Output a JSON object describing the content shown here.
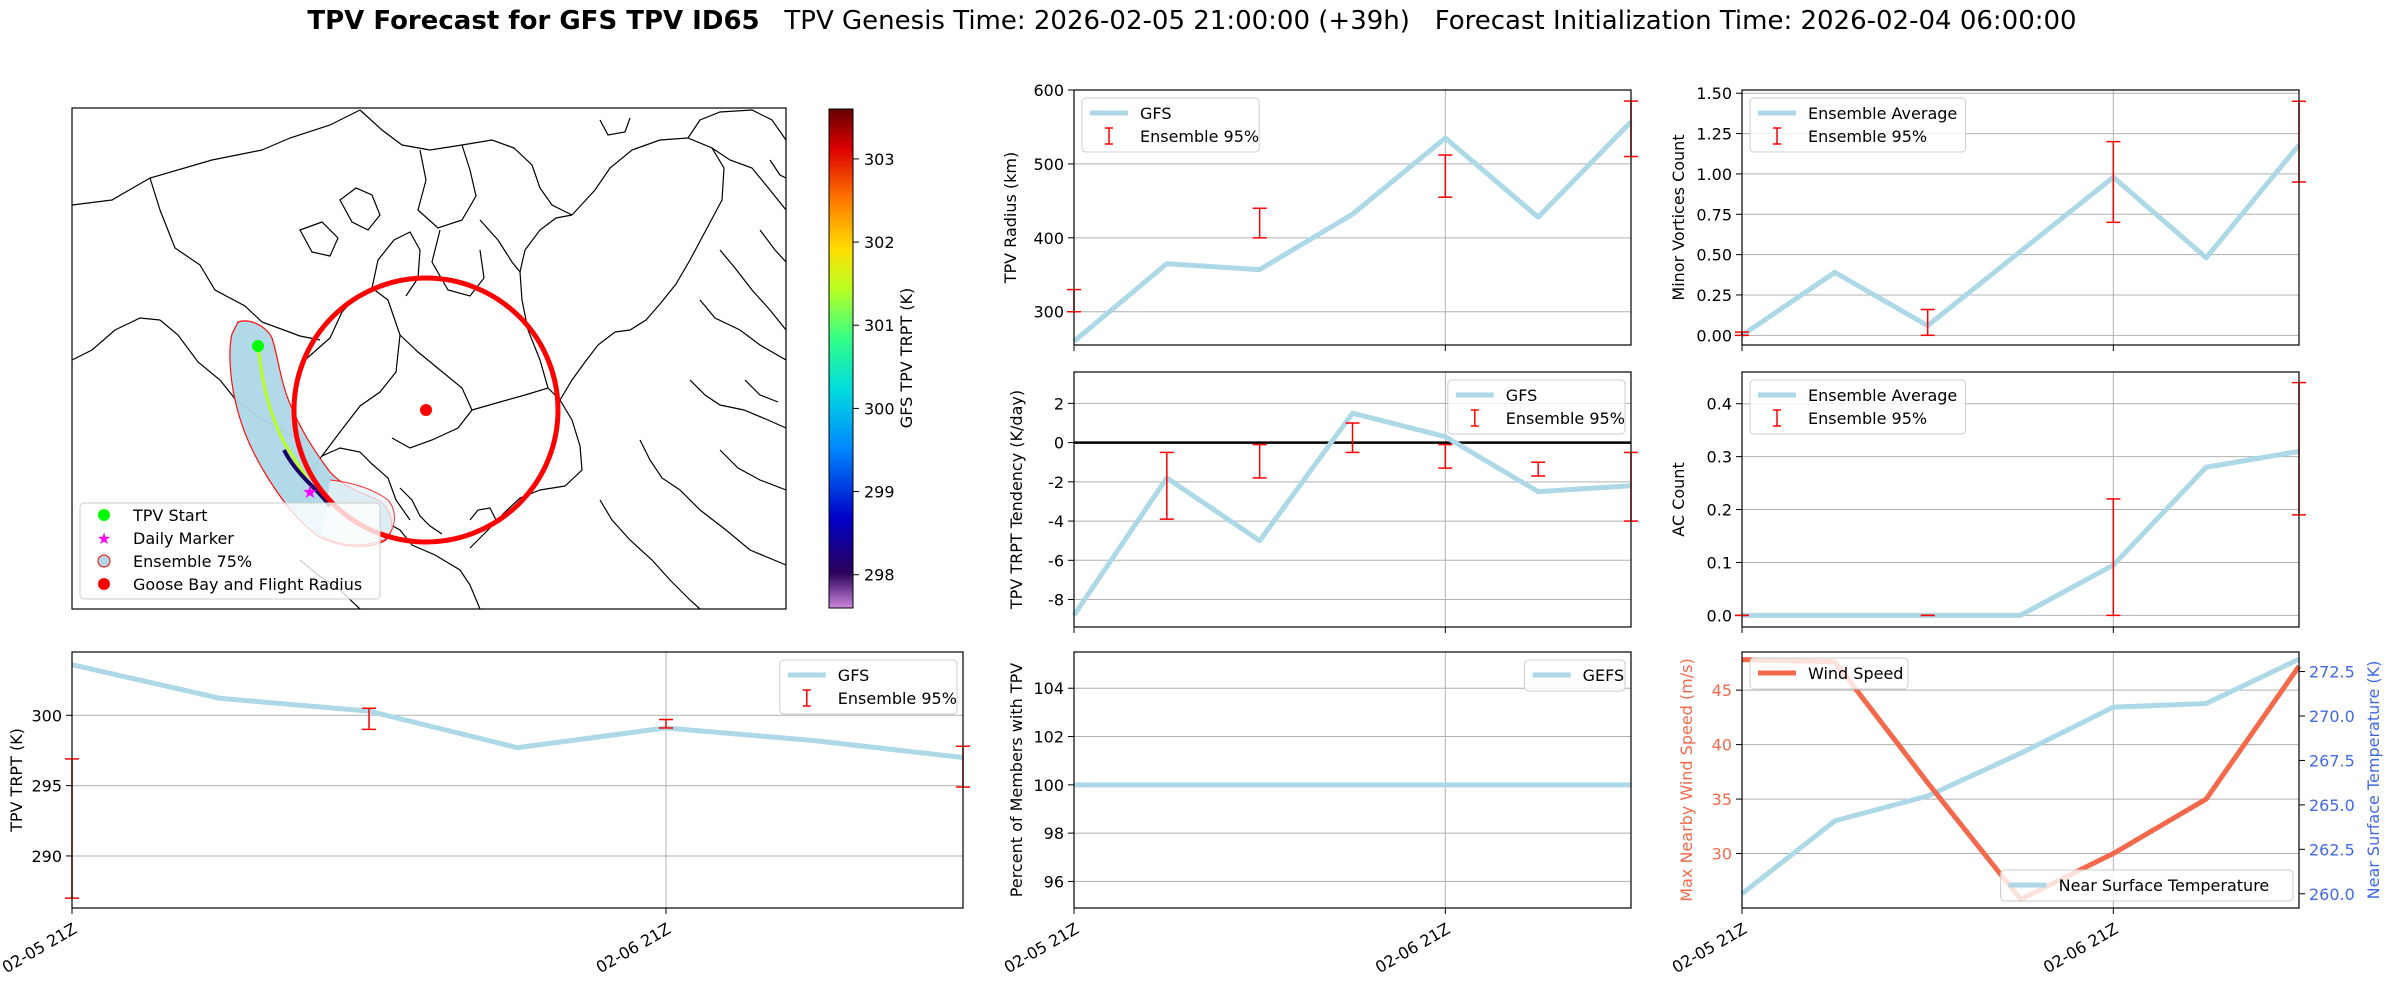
{
  "figure": {
    "title_bold": "TPV Forecast for GFS TPV ID65",
    "title_rest": "TPV Genesis Time: 2026-02-05 21:00:00 (+39h)   Forecast Initialization Time: 2026-02-04 06:00:00"
  },
  "colors": {
    "line": "#add8e6",
    "error": "#ff0000",
    "wind": "#f4694c",
    "temp_axis": "#4169e1",
    "legend_edge": "#cccccc"
  },
  "map": {
    "legend": [
      "TPV Start",
      "Daily Marker",
      "Ensemble 75%",
      "Goose Bay and Flight Radius"
    ],
    "colorbar": {
      "label": "GFS TPV TRPT (K)",
      "ticks": [
        298,
        299,
        300,
        301,
        302,
        303
      ],
      "range": [
        297.6,
        303.6
      ]
    }
  },
  "chart_data": [
    {
      "id": "radius",
      "type": "line",
      "ylabel": "TPV Radius (km)",
      "x": [
        "02-05 21Z",
        "02-06 03Z",
        "02-06 09Z",
        "02-06 15Z",
        "02-06 21Z",
        "02-07 03Z",
        "02-07 09Z"
      ],
      "xticks": [
        "02-05 21Z",
        "02-06 21Z"
      ],
      "ylim": [
        255,
        600
      ],
      "yticks": [
        300,
        400,
        500,
        600
      ],
      "grid": true,
      "series": [
        {
          "name": "GFS",
          "values": [
            260,
            365,
            357,
            432,
            535,
            428,
            557
          ]
        }
      ],
      "errorbars": {
        "name": "Ensemble 95%",
        "points": [
          {
            "i": 0,
            "low": 300,
            "high": 330
          },
          {
            "i": 2,
            "low": 400,
            "high": 440
          },
          {
            "i": 4,
            "low": 455,
            "high": 512
          },
          {
            "i": 6,
            "low": 510,
            "high": 585
          }
        ]
      },
      "legend": "top-left"
    },
    {
      "id": "minor",
      "type": "line",
      "ylabel": "Minor Vortices Count",
      "x": [
        "02-05 21Z",
        "02-06 03Z",
        "02-06 09Z",
        "02-06 15Z",
        "02-06 21Z",
        "02-07 03Z",
        "02-07 09Z"
      ],
      "xticks": [
        "02-05 21Z",
        "02-06 21Z"
      ],
      "ylim": [
        -0.06,
        1.52
      ],
      "yticks": [
        0.0,
        0.25,
        0.5,
        0.75,
        1.0,
        1.25,
        1.5
      ],
      "tick_decimals": 2,
      "grid": true,
      "series": [
        {
          "name": "Ensemble Average",
          "values": [
            0.0,
            0.39,
            0.06,
            0.52,
            0.98,
            0.48,
            1.18
          ]
        }
      ],
      "errorbars": {
        "name": "Ensemble 95%",
        "points": [
          {
            "i": 0,
            "low": 0.0,
            "high": 0.02
          },
          {
            "i": 2,
            "low": 0.0,
            "high": 0.16
          },
          {
            "i": 4,
            "low": 0.7,
            "high": 1.2
          },
          {
            "i": 6,
            "low": 0.95,
            "high": 1.45
          }
        ]
      },
      "legend": "top-left"
    },
    {
      "id": "tendency",
      "type": "line",
      "ylabel": "TPV TRPT Tendency (K/day)",
      "x": [
        "02-05 21Z",
        "02-06 03Z",
        "02-06 09Z",
        "02-06 15Z",
        "02-06 21Z",
        "02-07 03Z",
        "02-07 09Z"
      ],
      "xticks": [
        "02-05 21Z",
        "02-06 21Z"
      ],
      "ylim": [
        -9.4,
        3.6
      ],
      "yticks": [
        -8,
        -6,
        -4,
        -2,
        0,
        2
      ],
      "grid": true,
      "zero_line": true,
      "series": [
        {
          "name": "GFS",
          "values": [
            -8.8,
            -1.8,
            -5.0,
            1.5,
            0.3,
            -2.5,
            -2.2
          ]
        }
      ],
      "errorbars": {
        "name": "Ensemble 95%",
        "points": [
          {
            "i": 1,
            "low": -3.9,
            "high": -0.5
          },
          {
            "i": 2,
            "low": -1.8,
            "high": -0.1
          },
          {
            "i": 3,
            "low": -0.5,
            "high": 1.0
          },
          {
            "i": 4,
            "low": -1.3,
            "high": -0.1
          },
          {
            "i": 5,
            "low": -1.7,
            "high": -1.0
          },
          {
            "i": 6,
            "low": -4.0,
            "high": -0.5
          }
        ]
      },
      "legend": "top-right"
    },
    {
      "id": "ac",
      "type": "line",
      "ylabel": "AC Count",
      "x": [
        "02-05 21Z",
        "02-06 03Z",
        "02-06 09Z",
        "02-06 15Z",
        "02-06 21Z",
        "02-07 03Z",
        "02-07 09Z"
      ],
      "xticks": [
        "02-05 21Z",
        "02-06 21Z"
      ],
      "ylim": [
        -0.022,
        0.46
      ],
      "yticks": [
        0.0,
        0.1,
        0.2,
        0.3,
        0.4
      ],
      "tick_decimals": 1,
      "grid": true,
      "series": [
        {
          "name": "Ensemble Average",
          "values": [
            0.0,
            0.0,
            0.0,
            0.0,
            0.095,
            0.28,
            0.31
          ]
        }
      ],
      "errorbars": {
        "name": "Ensemble 95%",
        "points": [
          {
            "i": 0,
            "low": 0.0,
            "high": 0.0
          },
          {
            "i": 2,
            "low": 0.0,
            "high": 0.0
          },
          {
            "i": 4,
            "low": 0.0,
            "high": 0.22
          },
          {
            "i": 6,
            "low": 0.19,
            "high": 0.44
          }
        ]
      },
      "legend": "top-left"
    },
    {
      "id": "trpt",
      "type": "line",
      "ylabel": "TPV TRPT (K)",
      "x": [
        "02-05 21Z",
        "02-06 03Z",
        "02-06 09Z",
        "02-06 15Z",
        "02-06 21Z",
        "02-07 03Z",
        "02-07 09Z"
      ],
      "xticks": [
        "02-05 21Z",
        "02-06 21Z"
      ],
      "ylim": [
        286.3,
        304.5
      ],
      "yticks": [
        290,
        295,
        300
      ],
      "grid": true,
      "series": [
        {
          "name": "GFS",
          "values": [
            303.6,
            301.2,
            300.3,
            297.7,
            299.1,
            298.2,
            297.0
          ]
        }
      ],
      "errorbars": {
        "name": "Ensemble 95%",
        "points": [
          {
            "i": 0,
            "low": 287.0,
            "high": 296.9
          },
          {
            "i": 2,
            "low": 299.0,
            "high": 300.5
          },
          {
            "i": 4,
            "low": 299.1,
            "high": 299.7
          },
          {
            "i": 6,
            "low": 294.9,
            "high": 297.8
          }
        ]
      },
      "legend": "top-right"
    },
    {
      "id": "percent",
      "type": "line",
      "ylabel": "Percent of Members with TPV",
      "x": [
        "02-05 21Z",
        "02-06 03Z",
        "02-06 09Z",
        "02-06 15Z",
        "02-06 21Z",
        "02-07 03Z",
        "02-07 09Z"
      ],
      "xticks": [
        "02-05 21Z",
        "02-06 21Z"
      ],
      "ylim": [
        94.9,
        105.5
      ],
      "yticks": [
        96,
        98,
        100,
        102,
        104
      ],
      "grid": true,
      "series": [
        {
          "name": "GEFS",
          "values": [
            100,
            100,
            100,
            100,
            100,
            100,
            100
          ]
        }
      ],
      "legend": "top-right"
    },
    {
      "id": "wind",
      "type": "line",
      "ylabel": "Max Nearby Wind Speed (m/s)",
      "ylabel2": "Near Surface Temperature (K)",
      "x": [
        "02-05 21Z",
        "02-06 03Z",
        "02-06 09Z",
        "02-06 15Z",
        "02-06 21Z",
        "02-07 03Z",
        "02-07 09Z"
      ],
      "xticks": [
        "02-05 21Z",
        "02-06 21Z"
      ],
      "ylim": [
        25,
        48.5
      ],
      "yticks": [
        30,
        35,
        40,
        45
      ],
      "y2lim": [
        259.2,
        273.6
      ],
      "y2ticks": [
        260.0,
        262.5,
        265.0,
        267.5,
        270.0,
        272.5
      ],
      "y2_decimals": 1,
      "grid": true,
      "series": [
        {
          "name": "Wind Speed",
          "axis": "left",
          "values": [
            47.8,
            47.6,
            36.5,
            25.8,
            30.0,
            35.0,
            47.2
          ]
        },
        {
          "name": "Near Surface Temperature",
          "axis": "right",
          "values": [
            260.0,
            264.1,
            265.5,
            267.9,
            270.5,
            270.7,
            273.2
          ]
        }
      ],
      "legend": [
        "top-left",
        "bottom-right"
      ]
    }
  ]
}
